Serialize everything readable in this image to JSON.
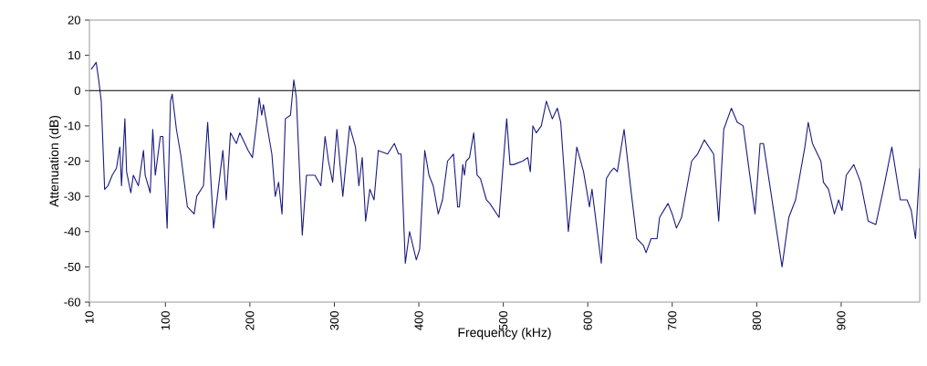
{
  "chart_data": {
    "type": "line",
    "xlabel": "Frequency (kHz)",
    "ylabel": "Attenuation (dB)",
    "xlim": [
      10,
      993
    ],
    "ylim": [
      -60,
      20
    ],
    "xticks": [
      10,
      100,
      200,
      300,
      400,
      500,
      600,
      700,
      800,
      900
    ],
    "yticks": [
      -60,
      -50,
      -40,
      -30,
      -20,
      -10,
      0,
      10,
      20
    ],
    "marker": "none",
    "line_style": "solid",
    "ref_lines": [
      {
        "axis": "y",
        "value": 0,
        "color": "#000000"
      }
    ],
    "series": [
      {
        "color": "#1a1a80",
        "x": [
          12,
          18,
          21,
          24,
          28,
          32,
          37,
          42,
          46,
          48,
          52,
          54,
          59,
          62,
          68,
          74,
          76,
          82,
          85,
          88,
          94,
          97,
          102,
          106,
          108,
          113,
          118,
          126,
          134,
          137,
          145,
          150,
          157,
          168,
          172,
          177,
          184,
          188,
          198,
          203,
          209,
          211,
          214,
          216,
          226,
          230,
          234,
          238,
          242,
          248,
          252,
          255,
          262,
          267,
          277,
          284,
          289,
          293,
          298,
          303,
          310,
          318,
          325,
          329,
          333,
          337,
          342,
          347,
          352,
          363,
          371,
          376,
          379,
          384,
          389,
          397,
          401,
          407,
          412,
          417,
          423,
          428,
          434,
          441,
          446,
          448,
          452,
          454,
          456,
          460,
          465,
          469,
          473,
          480,
          484,
          495,
          504,
          508,
          512,
          523,
          529,
          532,
          535,
          539,
          545,
          551,
          558,
          564,
          568,
          577,
          587,
          595,
          602,
          605,
          616,
          622,
          627,
          631,
          635,
          643,
          651,
          658,
          666,
          669,
          675,
          682,
          685,
          695,
          700,
          705,
          711,
          723,
          730,
          738,
          749,
          755,
          761,
          770,
          777,
          784,
          798,
          804,
          808,
          815,
          830,
          838,
          846,
          857,
          861,
          866,
          876,
          879,
          885,
          892,
          897,
          901,
          906,
          915,
          923,
          932,
          941,
          950,
          960,
          970,
          978,
          983,
          988,
          993
        ],
        "values": [
          6,
          8,
          3,
          -3,
          -28,
          -27,
          -24,
          -22,
          -16,
          -27,
          -8,
          -23,
          -29,
          -24,
          -27,
          -17,
          -24,
          -29,
          -11,
          -24,
          -13,
          -13,
          -39,
          -3,
          -1,
          -11,
          -18,
          -33,
          -35,
          -30,
          -27,
          -9,
          -39,
          -17,
          -31,
          -12,
          -15,
          -12,
          -17,
          -19,
          -7,
          -2,
          -7,
          -4,
          -18,
          -30,
          -26,
          -35,
          -8,
          -7,
          3,
          -2,
          -41,
          -24,
          -24,
          -27,
          -13,
          -20,
          -26,
          -11,
          -30,
          -10,
          -16,
          -27,
          -19,
          -37,
          -28,
          -31,
          -17,
          -18,
          -15,
          -18,
          -18,
          -49,
          -40,
          -48,
          -45,
          -17,
          -24,
          -27,
          -35,
          -31,
          -20,
          -18,
          -33,
          -33,
          -21,
          -24,
          -20,
          -19,
          -12,
          -24,
          -25,
          -31,
          -32,
          -36,
          -8,
          -21,
          -21,
          -20,
          -19,
          -23,
          -10,
          -12,
          -10,
          -3,
          -8,
          -5,
          -9,
          -40,
          -16,
          -23,
          -33,
          -28,
          -49,
          -25,
          -23,
          -22,
          -23,
          -11,
          -28,
          -42,
          -44,
          -46,
          -42,
          -42,
          -36,
          -32,
          -35,
          -39,
          -36,
          -20,
          -18,
          -14,
          -18,
          -37,
          -11,
          -5,
          -9,
          -10,
          -35,
          -15,
          -15,
          -26,
          -50,
          -36,
          -31,
          -16,
          -9,
          -15,
          -20,
          -26,
          -28,
          -35,
          -31,
          -34,
          -24,
          -21,
          -26,
          -37,
          -38,
          -28,
          -16,
          -31,
          -31,
          -34,
          -42,
          -22
        ]
      }
    ]
  }
}
